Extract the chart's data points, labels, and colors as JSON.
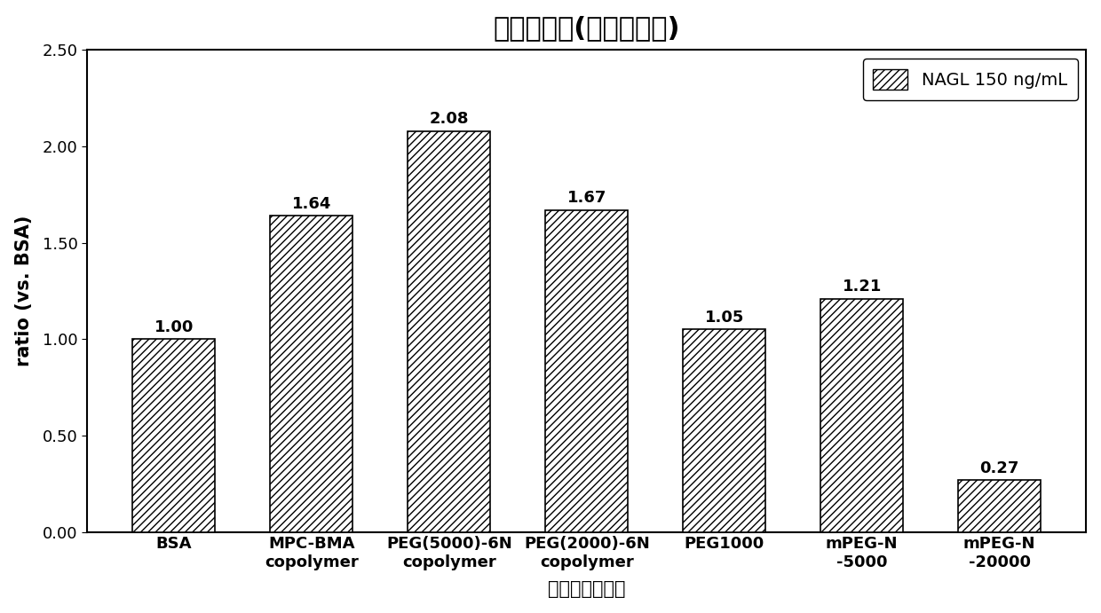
{
  "title": "试剂反应性(多克隆抗体)",
  "xlabel": "封闭剂主要成分",
  "ylabel": "ratio (vs. BSA)",
  "categories": [
    "BSA",
    "MPC-BMA\ncopolymer",
    "PEG(5000)-6N\ncopolymer",
    "PEG(2000)-6N\ncopolymer",
    "PEG1000",
    "mPEG-N\n-5000",
    "mPEG-N\n-20000"
  ],
  "values": [
    1.0,
    1.64,
    2.08,
    1.67,
    1.05,
    1.21,
    0.27
  ],
  "ylim": [
    0,
    2.5
  ],
  "yticks": [
    0.0,
    0.5,
    1.0,
    1.5,
    2.0,
    2.5
  ],
  "legend_label": "NAGL 150 ng/mL",
  "bar_facecolor": "#ffffff",
  "hatch": "////",
  "bar_edgecolor": "#000000",
  "background_color": "#ffffff",
  "title_fontsize": 22,
  "label_fontsize": 15,
  "tick_fontsize": 13,
  "value_fontsize": 13,
  "legend_fontsize": 14,
  "bar_width": 0.6
}
